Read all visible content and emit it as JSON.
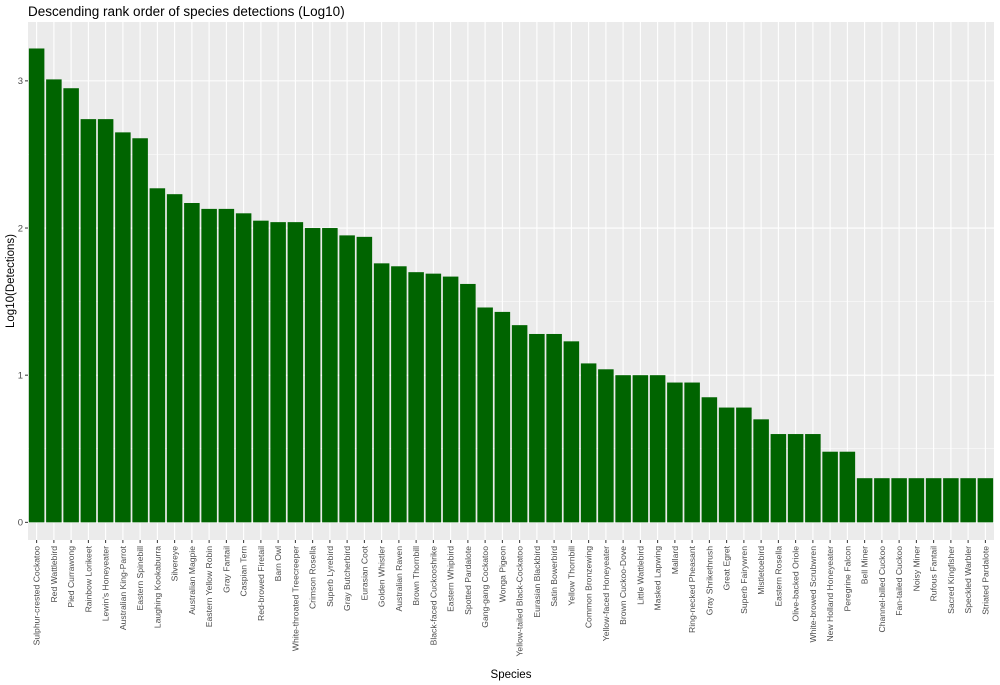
{
  "chart_data": {
    "type": "bar",
    "title": "Descending rank order of species detections (Log10)",
    "xlabel": "Species",
    "ylabel": "Log10(Detections)",
    "ylim": [
      -0.12,
      3.4
    ],
    "yticks": [
      0,
      1,
      2,
      3
    ],
    "grid": true,
    "bar_color": "#006400",
    "panel_color": "#ebebeb",
    "categories": [
      "Sulphur-crested Cockatoo",
      "Red Wattlebird",
      "Pied Currawong",
      "Rainbow Lorikeet",
      "Lewin's Honeyeater",
      "Australian King-Parrot",
      "Eastern Spinebill",
      "Laughing Kookaburra",
      "Silvereye",
      "Australian Magpie",
      "Eastern Yellow Robin",
      "Gray Fantail",
      "Caspian Tern",
      "Red-browed Firetail",
      "Barn Owl",
      "White-throated Treecreeper",
      "Crimson Rosella",
      "Superb Lyrebird",
      "Gray Butcherbird",
      "Eurasian Coot",
      "Golden Whistler",
      "Australian Raven",
      "Brown Thornbill",
      "Black-faced Cuckooshrike",
      "Eastern Whipbird",
      "Spotted Pardalote",
      "Gang-gang Cockatoo",
      "Wonga Pigeon",
      "Yellow-tailed Black-Cockatoo",
      "Eurasian Blackbird",
      "Satin Bowerbird",
      "Yellow Thornbill",
      "Common Bronzewing",
      "Yellow-faced Honeyeater",
      "Brown Cuckoo-Dove",
      "Little Wattlebird",
      "Masked Lapwing",
      "Mallard",
      "Ring-necked Pheasant",
      "Gray Shrikethrush",
      "Great Egret",
      "Superb Fairywren",
      "Mistletoebird",
      "Eastern Rosella",
      "Olive-backed Oriole",
      "White-browed Scrubwren",
      "New Holland Honeyeater",
      "Peregrine Falcon",
      "Bell Miner",
      "Channel-billed Cuckoo",
      "Fan-tailed Cuckoo",
      "Noisy Miner",
      "Rufous Fantail",
      "Sacred Kingfisher",
      "Speckled Warbler",
      "Striated Pardalote"
    ],
    "values": [
      3.22,
      3.01,
      2.95,
      2.74,
      2.74,
      2.65,
      2.61,
      2.27,
      2.23,
      2.17,
      2.13,
      2.13,
      2.1,
      2.05,
      2.04,
      2.04,
      2.0,
      2.0,
      1.95,
      1.94,
      1.76,
      1.74,
      1.7,
      1.69,
      1.67,
      1.62,
      1.46,
      1.43,
      1.34,
      1.28,
      1.28,
      1.23,
      1.08,
      1.04,
      1.0,
      1.0,
      1.0,
      0.95,
      0.95,
      0.85,
      0.78,
      0.78,
      0.7,
      0.6,
      0.6,
      0.6,
      0.48,
      0.48,
      0.3,
      0.3,
      0.3,
      0.3,
      0.3,
      0.3,
      0.3,
      0.3
    ]
  }
}
